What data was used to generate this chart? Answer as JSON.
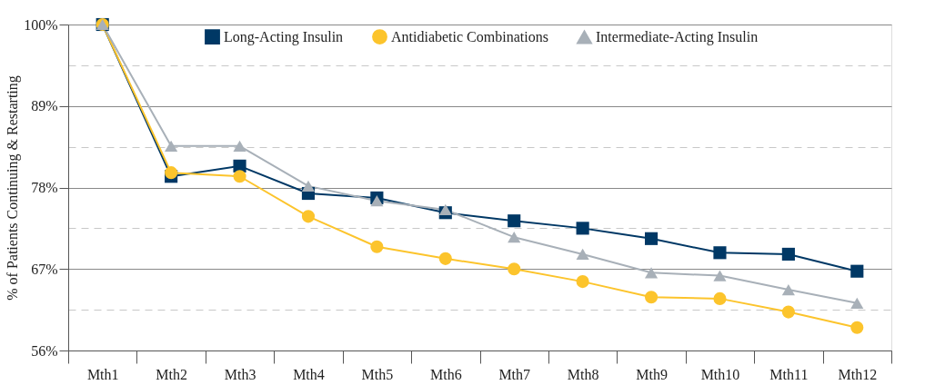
{
  "chart_data": {
    "type": "line",
    "ylabel": "% of Patients Continuing & Restarting",
    "categories": [
      "Mth1",
      "Mth2",
      "Mth3",
      "Mth4",
      "Mth5",
      "Mth6",
      "Mth7",
      "Mth8",
      "Mth9",
      "Mth10",
      "Mth11",
      "Mth12"
    ],
    "series": [
      {
        "name": "Long-Acting Insulin",
        "color": "#003865",
        "marker": "square",
        "values": [
          100,
          79.5,
          80.9,
          77.2,
          76.6,
          74.6,
          73.5,
          72.5,
          71.1,
          69.2,
          69.0,
          66.7
        ]
      },
      {
        "name": "Antidiabetic Combinations",
        "color": "#fcc42c",
        "marker": "circle",
        "values": [
          100,
          80.0,
          79.5,
          74.1,
          70.0,
          68.4,
          67.0,
          65.3,
          63.2,
          63.0,
          61.2,
          59.1
        ]
      },
      {
        "name": "Intermediate-Acting Insulin",
        "color": "#a8b0b8",
        "marker": "triangle",
        "values": [
          100,
          83.6,
          83.6,
          78.2,
          76.2,
          75.0,
          71.3,
          69.0,
          66.5,
          66.1,
          64.2,
          62.4
        ]
      }
    ],
    "ylim": [
      56,
      100
    ],
    "yticks": [
      {
        "value": 56,
        "label": "56%"
      },
      {
        "value": 61.5,
        "label": null
      },
      {
        "value": 67,
        "label": "67%"
      },
      {
        "value": 72.5,
        "label": null
      },
      {
        "value": 78,
        "label": "78%"
      },
      {
        "value": 83.5,
        "label": null
      },
      {
        "value": 89,
        "label": "89%"
      },
      {
        "value": 94.5,
        "label": null
      },
      {
        "value": 100,
        "label": "100%"
      }
    ],
    "grid": "y",
    "legend": "top",
    "line_style": "solid"
  }
}
